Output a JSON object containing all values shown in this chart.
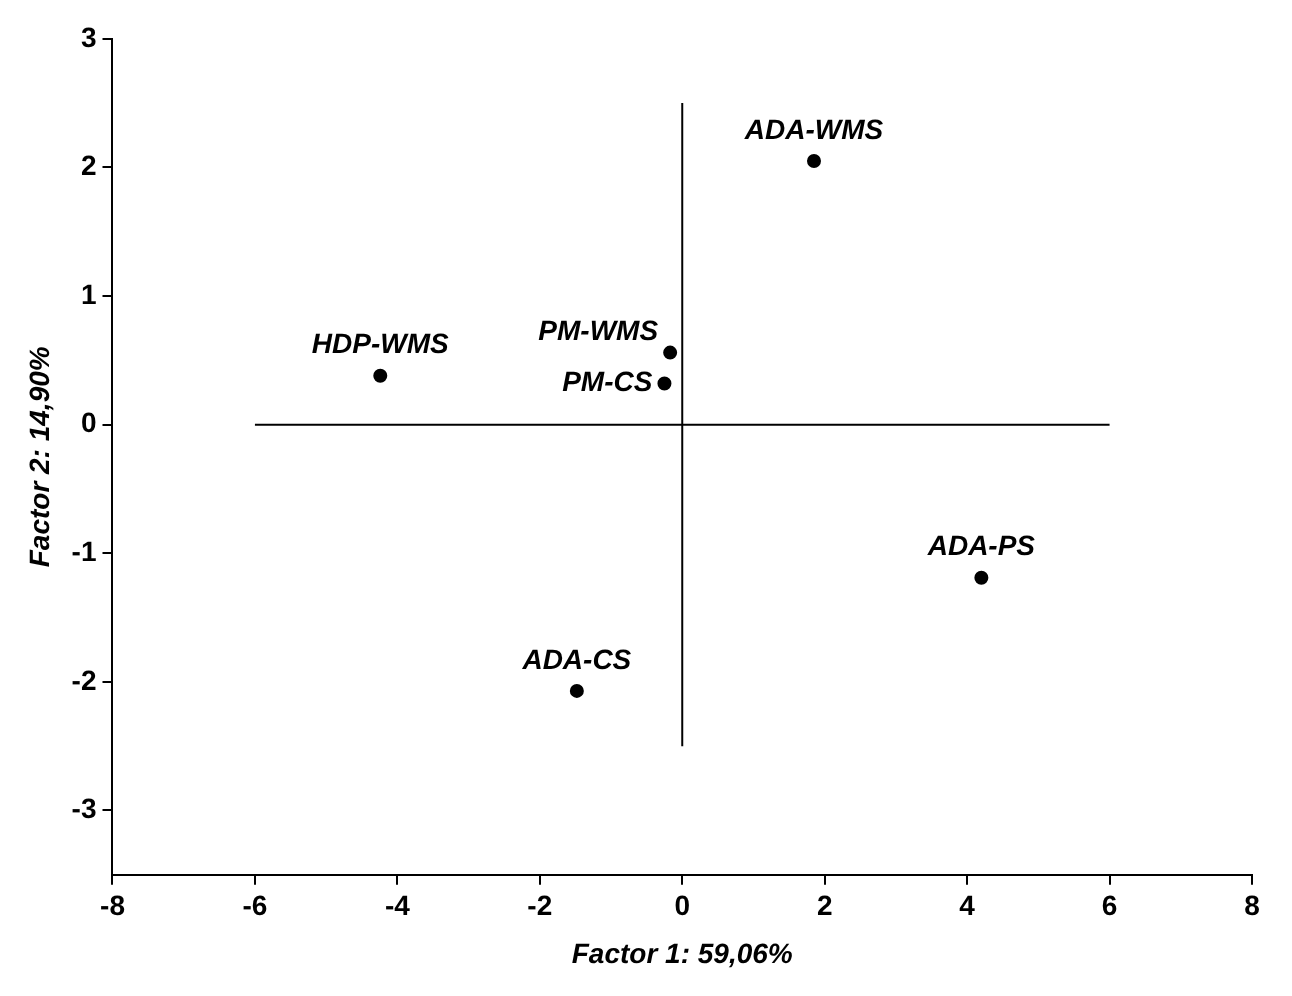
{
  "chart_data": {
    "type": "scatter",
    "xlabel": "Factor 1: 59,06%",
    "ylabel": "Factor 2: 14,90%",
    "series": [
      {
        "color": "#000000",
        "marker": "circle",
        "x": [
          1.85,
          -4.24,
          -0.17,
          -0.25,
          4.2,
          -1.48
        ],
        "values": [
          2.05,
          0.38,
          0.56,
          0.32,
          -1.19,
          -2.07
        ]
      },
      {
        "type": "line",
        "marker": "none",
        "color": "#000000",
        "x": [
          -6,
          6
        ],
        "values": [
          0,
          0
        ]
      },
      {
        "type": "line",
        "marker": "none",
        "color": "#000000",
        "x": [
          0,
          0
        ],
        "values": [
          -2.5,
          2.5
        ]
      }
    ],
    "annotations": [
      {
        "text": "ADA-WMS",
        "x": 1.85,
        "y": 2.05
      },
      {
        "text": "HDP-WMS",
        "x": -4.24,
        "y": 0.38
      },
      {
        "text": "PM-WMS",
        "x": -0.17,
        "y": 0.56
      },
      {
        "text": "PM-CS",
        "x": -0.25,
        "y": 0.32
      },
      {
        "text": "ADA-PS",
        "x": 4.2,
        "y": -1.19
      },
      {
        "text": "ADA-CS",
        "x": -1.48,
        "y": -2.07
      }
    ],
    "xlim": [
      -8,
      8
    ],
    "xticks": [
      -8,
      -6,
      -4,
      -2,
      0,
      2,
      4,
      6,
      8
    ],
    "ylim": [
      -3.5,
      3
    ],
    "yticks": [
      -3,
      -2,
      -1,
      0,
      1,
      2,
      3
    ],
    "grid": false,
    "legend": false
  }
}
